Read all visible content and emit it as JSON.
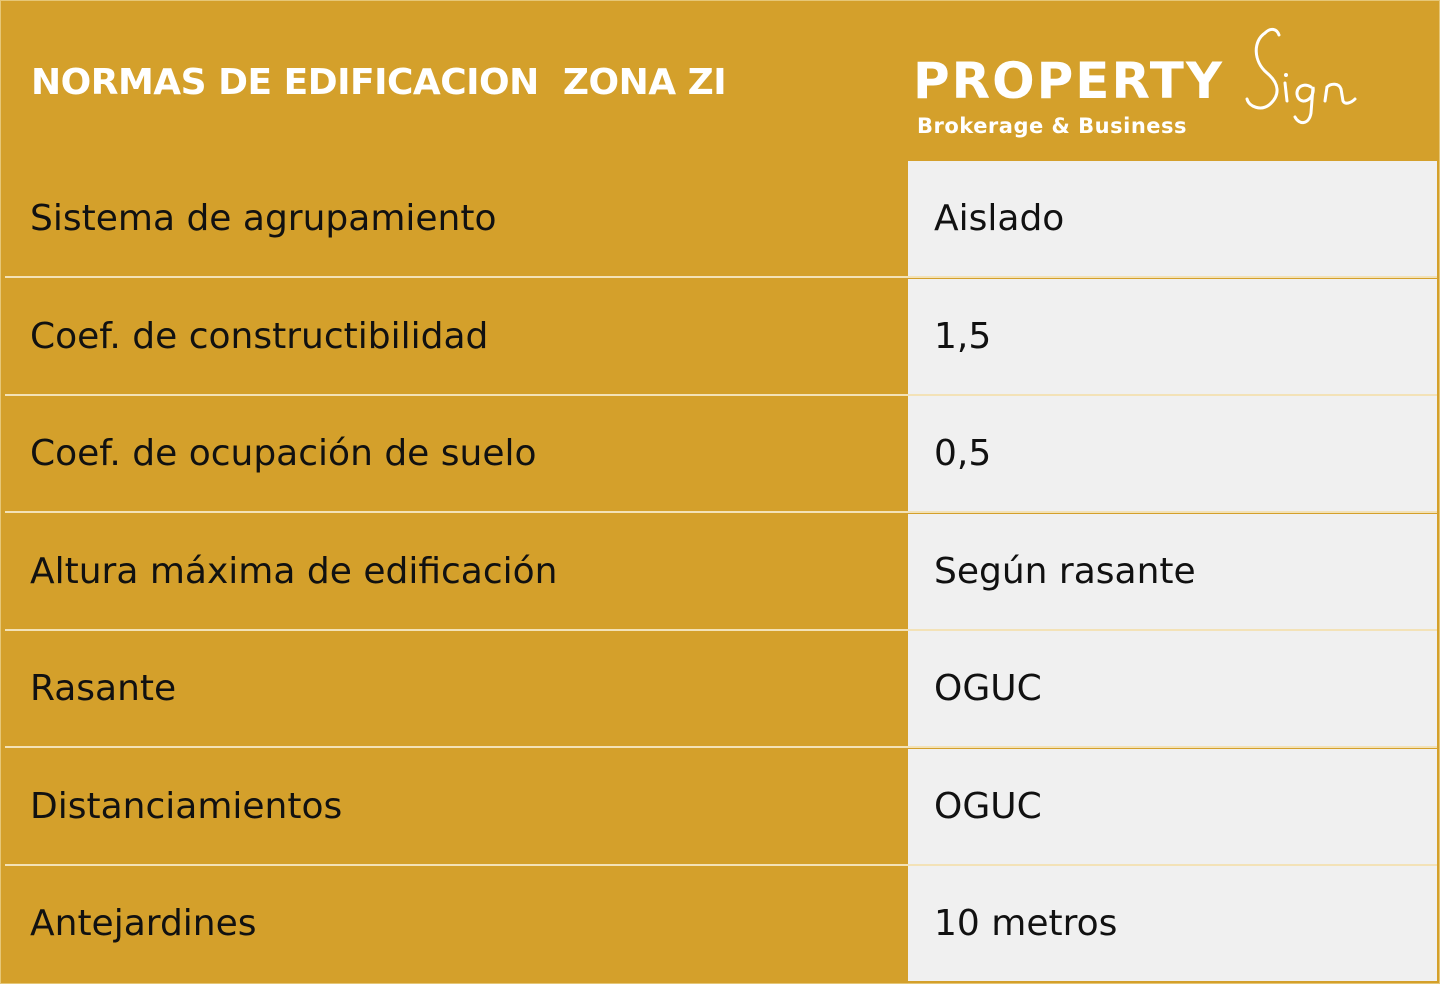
{
  "header": {
    "title": "NORMAS DE EDIFICACION  ZONA ZI"
  },
  "logo": {
    "wordmark": "PROPERTY",
    "script": "Sign",
    "tagline": "Brokerage & Business"
  },
  "table": {
    "rows": [
      {
        "label": "Sistema de agrupamiento",
        "value": "Aislado"
      },
      {
        "label": "Coef. de constructibilidad",
        "value": "1,5"
      },
      {
        "label": "Coef. de ocupación de suelo",
        "value": "0,5"
      },
      {
        "label": "Altura máxima de edificación",
        "value": "Según rasante"
      },
      {
        "label": "Rasante",
        "value": "OGUC"
      },
      {
        "label": "Distanciamientos",
        "value": "OGUC"
      },
      {
        "label": "Antejardines",
        "value": "10 metros"
      }
    ]
  },
  "colors": {
    "gold": "#d4a02b",
    "value_bg": "#f0f0f0",
    "text": "#111111",
    "header_text": "#ffffff"
  }
}
